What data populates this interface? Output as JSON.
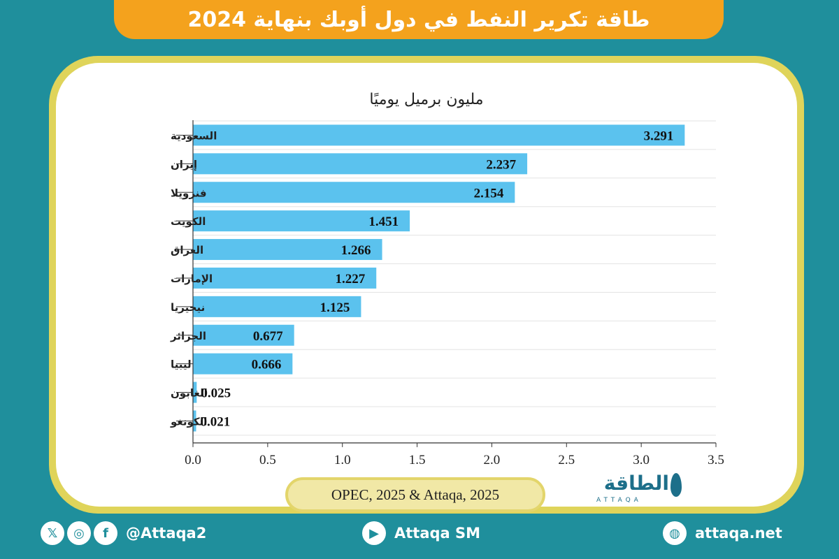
{
  "title": "طاقة تكرير النفط في دول أوبك بنهاية 2024",
  "unit_label": "مليون برميل يوميًا",
  "source": "OPEC, 2025 & Attaqa, 2025",
  "logo": {
    "arabic": "الطاقة",
    "english": "ATTAQA"
  },
  "footer": {
    "social_handle": "@Attaqa2",
    "youtube": "Attaqa SM",
    "website": "attaqa.net",
    "icons": [
      "x-icon",
      "instagram-icon",
      "facebook-icon",
      "youtube-icon",
      "globe-icon"
    ]
  },
  "colors": {
    "bar": "#5bc2ee",
    "title_bg": "#f4a21d",
    "background": "#1f8f9c",
    "card_border": "#dfd45a"
  },
  "chart_data": {
    "type": "bar",
    "orientation": "horizontal",
    "title": "طاقة تكرير النفط في دول أوبك بنهاية 2024",
    "ylabel": "مليون برميل يوميًا",
    "categories": [
      "السعودية",
      "إيران",
      "فنزويلا",
      "الكويت",
      "العراق",
      "الإمارات",
      "نيجيريا",
      "الجزائر",
      "ليبيا",
      "الغابون",
      "الكونغو"
    ],
    "values": [
      3.291,
      2.237,
      2.154,
      1.451,
      1.266,
      1.227,
      1.125,
      0.677,
      0.666,
      0.025,
      0.021
    ],
    "value_labels": [
      "3.291",
      "2.237",
      "2.154",
      "1.451",
      "1.266",
      "1.227",
      "1.125",
      "0.677",
      "0.666",
      "0.025",
      "0.021"
    ],
    "xlim": [
      0,
      3.5
    ],
    "xticks": [
      0.0,
      0.5,
      1.0,
      1.5,
      2.0,
      2.5,
      3.0,
      3.5
    ],
    "xtick_labels": [
      "0.0",
      "0.5",
      "1.0",
      "1.5",
      "2.0",
      "2.5",
      "3.0",
      "3.5"
    ],
    "grid": true
  }
}
